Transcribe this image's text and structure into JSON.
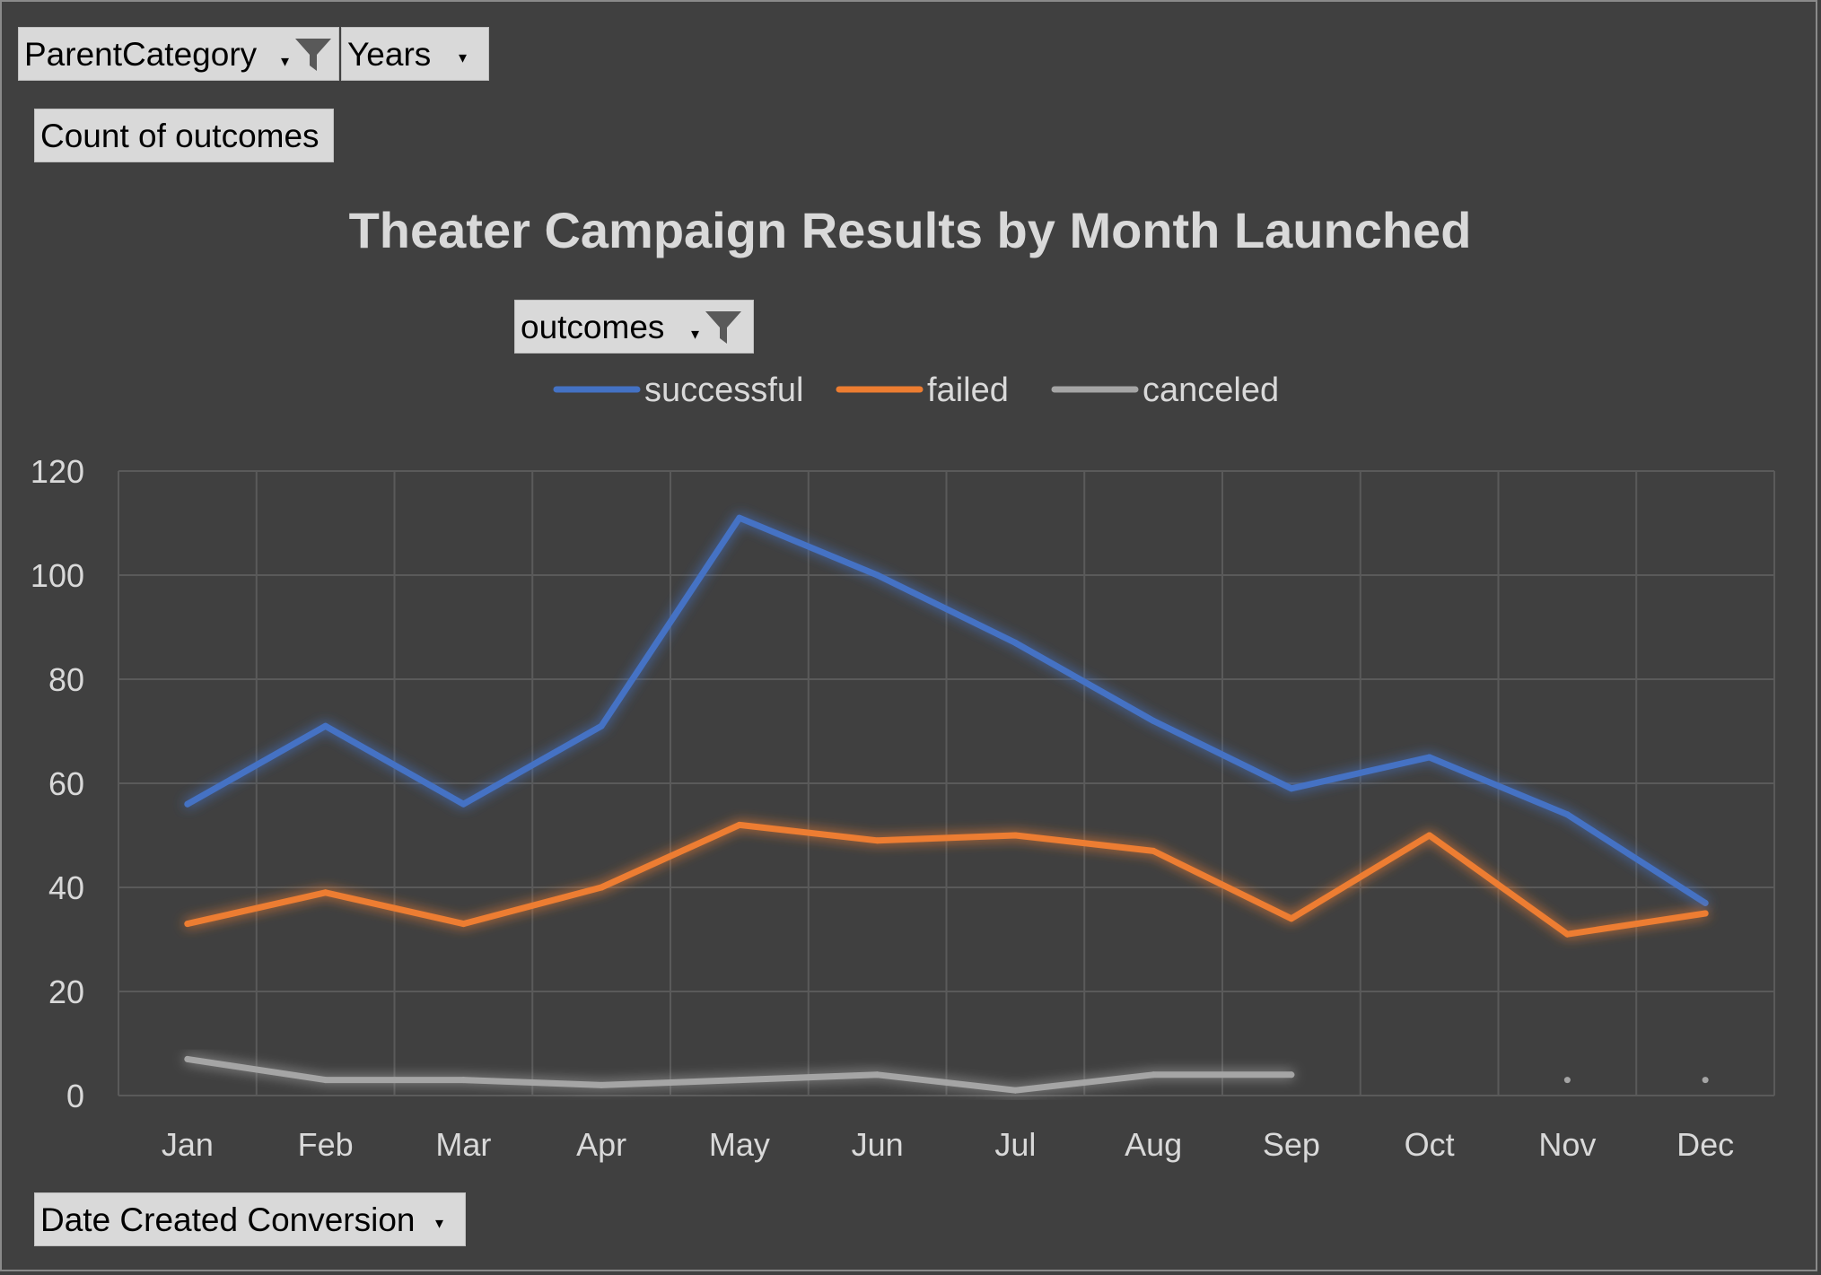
{
  "filters": {
    "parent_category": "ParentCategory",
    "years": "Years",
    "values_field": "Count of outcomes",
    "legend_field": "outcomes",
    "axis_field": "Date Created Conversion"
  },
  "colors": {
    "background": "#404040",
    "successful": "#4472C4",
    "failed": "#ED7D31",
    "canceled": "#A5A5A5"
  },
  "chart_data": {
    "type": "line",
    "title": "Theater Campaign Results by Month Launched",
    "xlabel": "",
    "ylabel": "",
    "categories": [
      "Jan",
      "Feb",
      "Mar",
      "Apr",
      "May",
      "Jun",
      "Jul",
      "Aug",
      "Sep",
      "Oct",
      "Nov",
      "Dec"
    ],
    "ylim": [
      0,
      120
    ],
    "yticks": [
      0,
      20,
      40,
      60,
      80,
      100,
      120
    ],
    "grid": true,
    "legend_position": "top",
    "series": [
      {
        "name": "successful",
        "values": [
          56,
          71,
          56,
          71,
          111,
          100,
          87,
          72,
          59,
          65,
          54,
          37
        ]
      },
      {
        "name": "failed",
        "values": [
          33,
          39,
          33,
          40,
          52,
          49,
          50,
          47,
          34,
          50,
          31,
          35
        ]
      },
      {
        "name": "canceled",
        "values": [
          7,
          3,
          3,
          2,
          3,
          4,
          1,
          4,
          4,
          null,
          3,
          3
        ]
      }
    ]
  }
}
